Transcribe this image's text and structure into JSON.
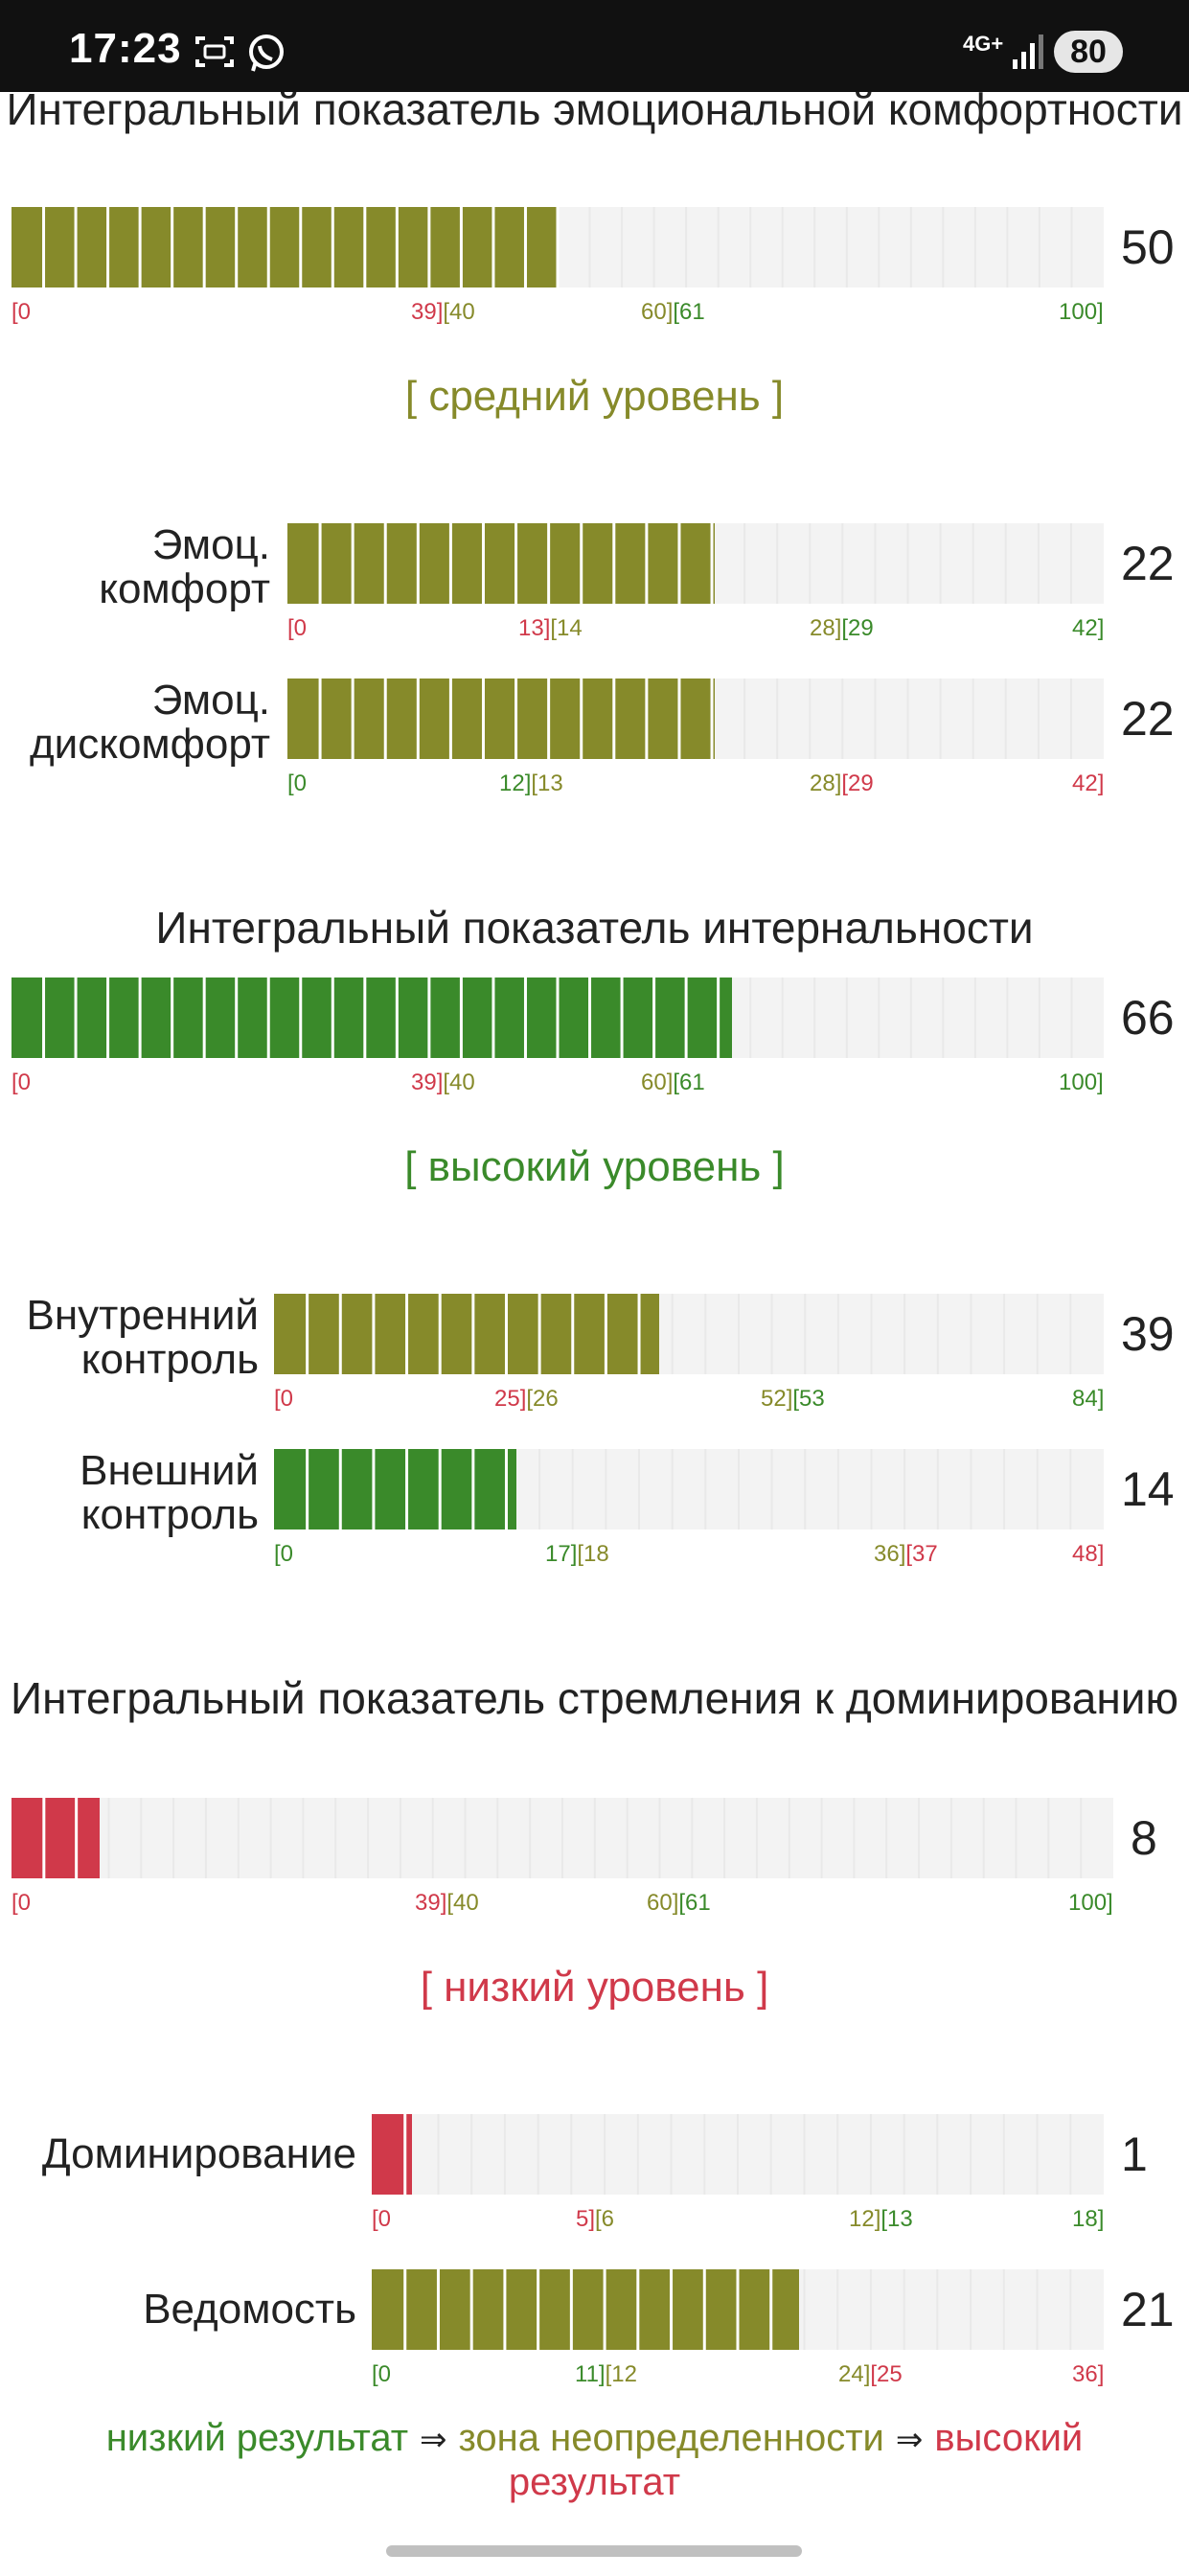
{
  "status_bar": {
    "time": "17:23",
    "network": "4G+",
    "battery": "80",
    "icons": [
      "screenshot-icon",
      "whatsapp-icon",
      "signal-icon"
    ]
  },
  "colors": {
    "green": "#3a8a2a",
    "olive": "#868a2a",
    "red": "#d0394a",
    "track": "#f3f3f3"
  },
  "sections": [
    {
      "title": "Интегральный показатель эмоциональной комфортности",
      "main": {
        "score": "50",
        "value": 50,
        "max": 100,
        "color": "olive",
        "ticks": [
          {
            "segments": [
              {
                "text": "[0",
                "color": "red"
              }
            ]
          },
          {
            "segments": [
              {
                "text": "39]",
                "color": "red"
              },
              {
                "text": "[40",
                "color": "olive"
              }
            ]
          },
          {
            "segments": [
              {
                "text": "60]",
                "color": "olive"
              },
              {
                "text": "[61",
                "color": "green"
              }
            ]
          },
          {
            "segments": [
              {
                "text": "100]",
                "color": "green"
              }
            ]
          }
        ]
      },
      "level": {
        "text": "[ средний уровень ]",
        "color": "olive"
      },
      "subs": [
        {
          "label": "Эмоц. комфорт",
          "score": "22",
          "value": 22,
          "max": 42,
          "color": "olive",
          "ticks": [
            {
              "segments": [
                {
                  "text": "[0",
                  "color": "red"
                }
              ]
            },
            {
              "segments": [
                {
                  "text": "13]",
                  "color": "red"
                },
                {
                  "text": "[14",
                  "color": "olive"
                }
              ]
            },
            {
              "segments": [
                {
                  "text": "28]",
                  "color": "olive"
                },
                {
                  "text": "[29",
                  "color": "green"
                }
              ]
            },
            {
              "segments": [
                {
                  "text": "42]",
                  "color": "green"
                }
              ]
            }
          ]
        },
        {
          "label": "Эмоц. дискомфорт",
          "score": "22",
          "value": 22,
          "max": 42,
          "color": "olive",
          "ticks": [
            {
              "segments": [
                {
                  "text": "[0",
                  "color": "green"
                }
              ]
            },
            {
              "segments": [
                {
                  "text": "12]",
                  "color": "green"
                },
                {
                  "text": "[13",
                  "color": "olive"
                }
              ]
            },
            {
              "segments": [
                {
                  "text": "28]",
                  "color": "olive"
                },
                {
                  "text": "[29",
                  "color": "red"
                }
              ]
            },
            {
              "segments": [
                {
                  "text": "42]",
                  "color": "red"
                }
              ]
            }
          ]
        }
      ]
    },
    {
      "title": "Интегральный показатель интернальности",
      "main": {
        "score": "66",
        "value": 66,
        "max": 100,
        "color": "green",
        "ticks": [
          {
            "segments": [
              {
                "text": "[0",
                "color": "red"
              }
            ]
          },
          {
            "segments": [
              {
                "text": "39]",
                "color": "red"
              },
              {
                "text": "[40",
                "color": "olive"
              }
            ]
          },
          {
            "segments": [
              {
                "text": "60]",
                "color": "olive"
              },
              {
                "text": "[61",
                "color": "green"
              }
            ]
          },
          {
            "segments": [
              {
                "text": "100]",
                "color": "green"
              }
            ]
          }
        ]
      },
      "level": {
        "text": "[ высокий уровень ]",
        "color": "green"
      },
      "subs": [
        {
          "label": "Внутренний контроль",
          "score": "39",
          "value": 39,
          "max": 84,
          "color": "olive",
          "ticks": [
            {
              "segments": [
                {
                  "text": "[0",
                  "color": "red"
                }
              ]
            },
            {
              "segments": [
                {
                  "text": "25]",
                  "color": "red"
                },
                {
                  "text": "[26",
                  "color": "olive"
                }
              ]
            },
            {
              "segments": [
                {
                  "text": "52]",
                  "color": "olive"
                },
                {
                  "text": "[53",
                  "color": "green"
                }
              ]
            },
            {
              "segments": [
                {
                  "text": "84]",
                  "color": "green"
                }
              ]
            }
          ]
        },
        {
          "label": "Внешний контроль",
          "score": "14",
          "value": 14,
          "max": 48,
          "color": "green",
          "ticks": [
            {
              "segments": [
                {
                  "text": "[0",
                  "color": "green"
                }
              ]
            },
            {
              "segments": [
                {
                  "text": "17]",
                  "color": "green"
                },
                {
                  "text": "[18",
                  "color": "olive"
                }
              ]
            },
            {
              "segments": [
                {
                  "text": "36]",
                  "color": "olive"
                },
                {
                  "text": "[37",
                  "color": "red"
                }
              ]
            },
            {
              "segments": [
                {
                  "text": "48]",
                  "color": "red"
                }
              ]
            }
          ]
        }
      ]
    },
    {
      "title": "Интегральный показатель стремления к доминированию",
      "main": {
        "score": "8",
        "value": 8,
        "max": 100,
        "color": "red",
        "ticks": [
          {
            "segments": [
              {
                "text": "[0",
                "color": "red"
              }
            ]
          },
          {
            "segments": [
              {
                "text": "39]",
                "color": "red"
              },
              {
                "text": "[40",
                "color": "olive"
              }
            ]
          },
          {
            "segments": [
              {
                "text": "60]",
                "color": "olive"
              },
              {
                "text": "[61",
                "color": "green"
              }
            ]
          },
          {
            "segments": [
              {
                "text": "100]",
                "color": "green"
              }
            ]
          }
        ]
      },
      "level": {
        "text": "[ низкий уровень ]",
        "color": "red"
      },
      "subs": [
        {
          "label": "Доминирование",
          "score": "1",
          "value": 1,
          "max": 18,
          "color": "red",
          "ticks": [
            {
              "segments": [
                {
                  "text": "[0",
                  "color": "red"
                }
              ]
            },
            {
              "segments": [
                {
                  "text": "5]",
                  "color": "red"
                },
                {
                  "text": "[6",
                  "color": "olive"
                }
              ]
            },
            {
              "segments": [
                {
                  "text": "12]",
                  "color": "olive"
                },
                {
                  "text": "[13",
                  "color": "green"
                }
              ]
            },
            {
              "segments": [
                {
                  "text": "18]",
                  "color": "green"
                }
              ]
            }
          ]
        },
        {
          "label": "Ведомость",
          "score": "21",
          "value": 21,
          "max": 36,
          "color": "olive",
          "ticks": [
            {
              "segments": [
                {
                  "text": "[0",
                  "color": "green"
                }
              ]
            },
            {
              "segments": [
                {
                  "text": "11]",
                  "color": "green"
                },
                {
                  "text": "[12",
                  "color": "olive"
                }
              ]
            },
            {
              "segments": [
                {
                  "text": "24]",
                  "color": "olive"
                },
                {
                  "text": "[25",
                  "color": "red"
                }
              ]
            },
            {
              "segments": [
                {
                  "text": "36]",
                  "color": "red"
                }
              ]
            }
          ]
        }
      ]
    }
  ],
  "legend": {
    "low": "низкий результат",
    "arrow": "⇒",
    "mid": "зона неопределенности",
    "high": "высокий результат"
  }
}
